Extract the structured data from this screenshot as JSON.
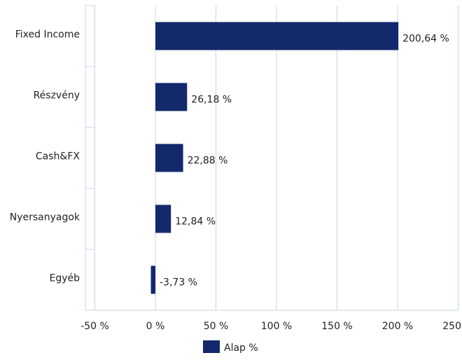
{
  "chart_data": {
    "type": "bar",
    "orientation": "horizontal",
    "categories": [
      "Fixed Income",
      "Részvény",
      "Cash&FX",
      "Nyersanyagok",
      "Egyéb"
    ],
    "series": [
      {
        "name": "Alap %",
        "color": "#13296b",
        "values": [
          200.64,
          26.18,
          22.88,
          12.84,
          -3.73
        ],
        "value_labels": [
          "200,64 %",
          "26,18 %",
          "22,88 %",
          "12,84 %",
          "-3,73 %"
        ]
      }
    ],
    "xlim": [
      -50,
      250
    ],
    "xticks": [
      {
        "value": -50,
        "label": "-50 %"
      },
      {
        "value": 0,
        "label": "0 %"
      },
      {
        "value": 50,
        "label": "50 %"
      },
      {
        "value": 100,
        "label": "100 %"
      },
      {
        "value": 150,
        "label": "150 %"
      },
      {
        "value": 200,
        "label": "200 %"
      },
      {
        "value": 250,
        "label": "250 %"
      }
    ],
    "grid": true,
    "legend": "bottom"
  }
}
